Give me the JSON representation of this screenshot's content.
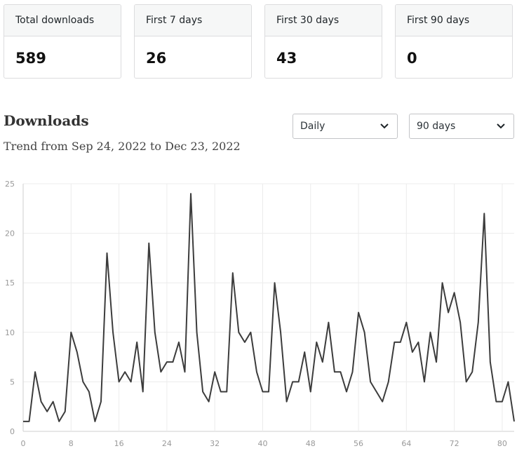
{
  "stats": [
    {
      "label": "Total downloads",
      "value": "589"
    },
    {
      "label": "First 7 days",
      "value": "26"
    },
    {
      "label": "First 30 days",
      "value": "43"
    },
    {
      "label": "First 90 days",
      "value": "0"
    }
  ],
  "section": {
    "title": "Downloads",
    "subtitle": "Trend from Sep 24, 2022 to Dec 23, 2022"
  },
  "controls": {
    "interval": "Daily",
    "range": "90 days"
  },
  "chart_data": {
    "type": "line",
    "color": "#3c3c3c",
    "grid": true,
    "xlim": [
      0,
      82
    ],
    "ylim": [
      0,
      25
    ],
    "x_ticks": [
      0,
      8,
      16,
      24,
      32,
      40,
      48,
      56,
      64,
      72,
      80
    ],
    "y_ticks": [
      0,
      5,
      10,
      15,
      20,
      25
    ],
    "series": [
      {
        "values": [
          1,
          1,
          6,
          3,
          2,
          3,
          1,
          2,
          10,
          8,
          5,
          4,
          1,
          3,
          18,
          10,
          5,
          6,
          5,
          9,
          4,
          19,
          10,
          6,
          7,
          7,
          9,
          6,
          24,
          10,
          4,
          3,
          6,
          4,
          4,
          16,
          10,
          9,
          10,
          6,
          4,
          4,
          15,
          10,
          3,
          5,
          5,
          8,
          4,
          9,
          7,
          11,
          6,
          6,
          4,
          6,
          12,
          10,
          5,
          4,
          3,
          5,
          9,
          9,
          11,
          8,
          9,
          5,
          10,
          7,
          15,
          12,
          14,
          11,
          5,
          6,
          11,
          22,
          7,
          3,
          3,
          5,
          1
        ]
      }
    ]
  }
}
